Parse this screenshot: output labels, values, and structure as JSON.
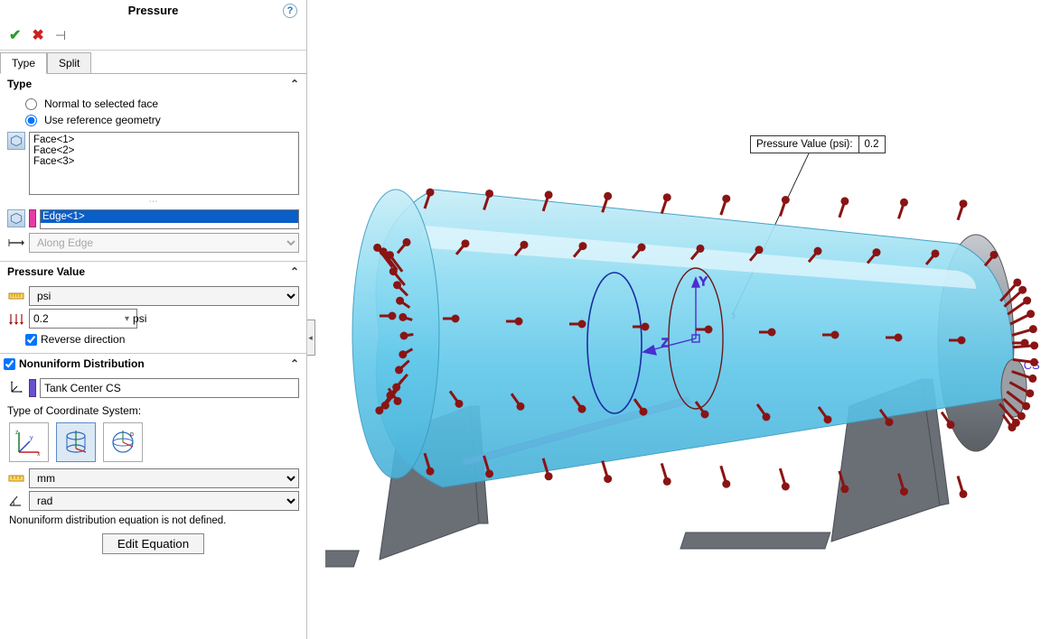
{
  "panel": {
    "title": "Pressure",
    "tabs": {
      "type": "Type",
      "split": "Split",
      "active": "type"
    },
    "type_section": {
      "header": "Type",
      "normal_label": "Normal to selected face",
      "refgeo_label": "Use reference geometry",
      "selected": "refgeo",
      "faces": [
        "Face<1>",
        "Face<2>",
        "Face<3>"
      ],
      "edge_sel": "Edge<1>",
      "direction_label": "Along Edge"
    },
    "pressure_value": {
      "header": "Pressure Value",
      "unit": "psi",
      "value": "0.2",
      "reverse_label": "Reverse direction",
      "reverse_checked": true
    },
    "nonuniform": {
      "header": "Nonuniform Distribution",
      "checked": true,
      "cs_name": "Tank Center CS",
      "type_label": "Type of Coordinate System:",
      "length_unit": "mm",
      "angle_unit": "rad",
      "warn": "Nonuniform distribution equation is not defined.",
      "edit_btn": "Edit Equation"
    }
  },
  "viewport": {
    "callout_label": "Pressure Value (psi):",
    "callout_value": "0.2",
    "cs_label": "Tank Center CS",
    "axis_y": "Y",
    "axis_z": "Z",
    "tank": {
      "body_color": "#7ad4ef",
      "body_highlight": "#c9eef8",
      "cap_color": "#8a8f96",
      "support_color": "#6a6f76",
      "arrow_color": "#8a1414",
      "floor_pink": "#f07ad4"
    }
  }
}
